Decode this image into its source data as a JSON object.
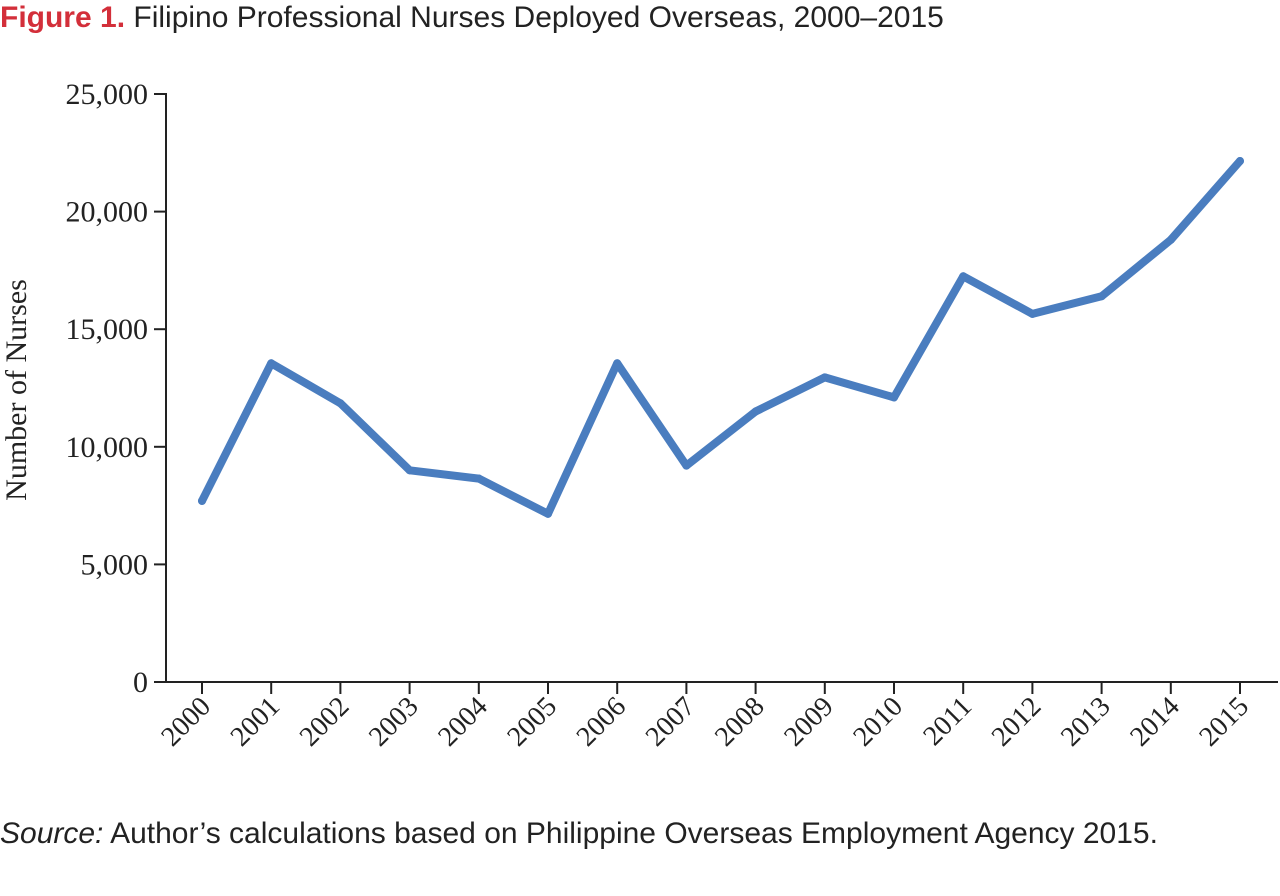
{
  "figure": {
    "label": "Figure 1.",
    "title": "Filipino Professional Nurses Deployed Overseas, 2000–2015"
  },
  "source": {
    "label": "Source:",
    "text": "Author’s calculations based on Philippine Overseas Employment Agency 2015."
  },
  "colors": {
    "line": "#4a7dbf",
    "accent": "#d32f3a",
    "axis": "#222222"
  },
  "chart_data": {
    "type": "line",
    "xlabel": "",
    "ylabel": "Number of Nurses",
    "ylim": [
      0,
      25000
    ],
    "yticks": [
      0,
      5000,
      10000,
      15000,
      20000,
      25000
    ],
    "ytick_labels": [
      "0",
      "5,000",
      "10,000",
      "15,000",
      "20,000",
      "25,000"
    ],
    "x": [
      "2000",
      "2001",
      "2002",
      "2003",
      "2004",
      "2005",
      "2006",
      "2007",
      "2008",
      "2009",
      "2010",
      "2011",
      "2012",
      "2013",
      "2014",
      "2015"
    ],
    "series": [
      {
        "values": [
          7700,
          13550,
          11850,
          9000,
          8650,
          7150,
          13550,
          9200,
          11500,
          12950,
          12100,
          17250,
          15650,
          16400,
          18800,
          22150
        ]
      }
    ],
    "grid": false,
    "legend": "none"
  }
}
